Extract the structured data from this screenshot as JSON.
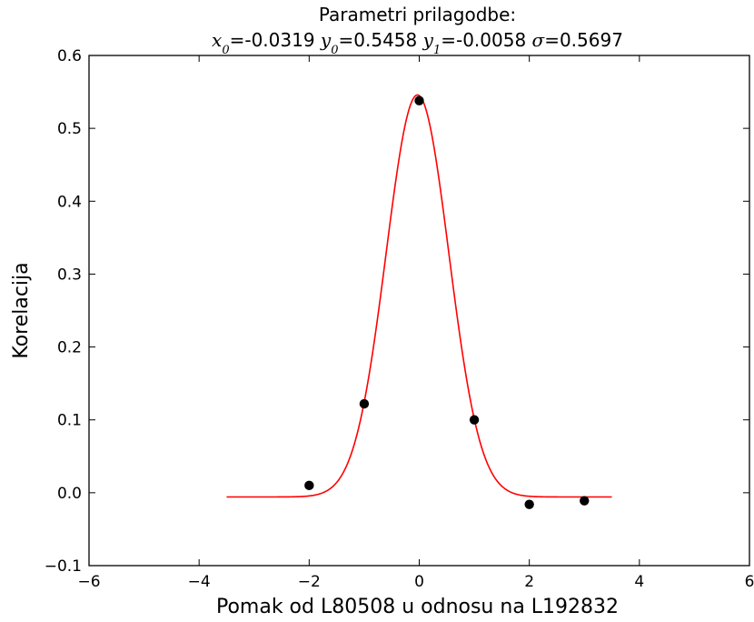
{
  "chart_data": {
    "type": "scatter",
    "title": "Parametri prilagodbe:",
    "subtitle": {
      "parts": [
        {
          "symbol": "x",
          "sub": "0",
          "value": "=-0.0319 "
        },
        {
          "symbol": "y",
          "sub": "0",
          "value": "=0.5458 "
        },
        {
          "symbol": "y",
          "sub": "1",
          "value": "=-0.0058 "
        },
        {
          "symbol": "σ",
          "sub": "",
          "value": "=0.5697"
        }
      ]
    },
    "xlabel": "Pomak od L80508 u odnosu na L192832",
    "ylabel": "Korelacija",
    "xlim": [
      -6,
      6
    ],
    "ylim": [
      -0.1,
      0.6
    ],
    "xticks": [
      -6,
      -4,
      -2,
      0,
      2,
      4,
      6
    ],
    "xtick_labels": [
      "−6",
      "−4",
      "−2",
      "0",
      "2",
      "4",
      "6"
    ],
    "yticks": [
      -0.1,
      0.0,
      0.1,
      0.2,
      0.3,
      0.4,
      0.5,
      0.6
    ],
    "ytick_labels": [
      "−0.1",
      "0.0",
      "0.1",
      "0.2",
      "0.3",
      "0.4",
      "0.5",
      "0.6"
    ],
    "grid": false,
    "series": [
      {
        "type": "scatter",
        "color": "#000000",
        "x": [
          -2,
          -1,
          0,
          1,
          2,
          3
        ],
        "y": [
          0.01,
          0.122,
          0.538,
          0.1,
          -0.016,
          -0.011
        ]
      },
      {
        "type": "line",
        "color": "#ff0000",
        "x_range": [
          -3.5,
          3.5
        ],
        "model": "gaussian",
        "params": {
          "x0": -0.0319,
          "y0": 0.5458,
          "y1": -0.0058,
          "sigma": 0.5697
        }
      }
    ]
  }
}
